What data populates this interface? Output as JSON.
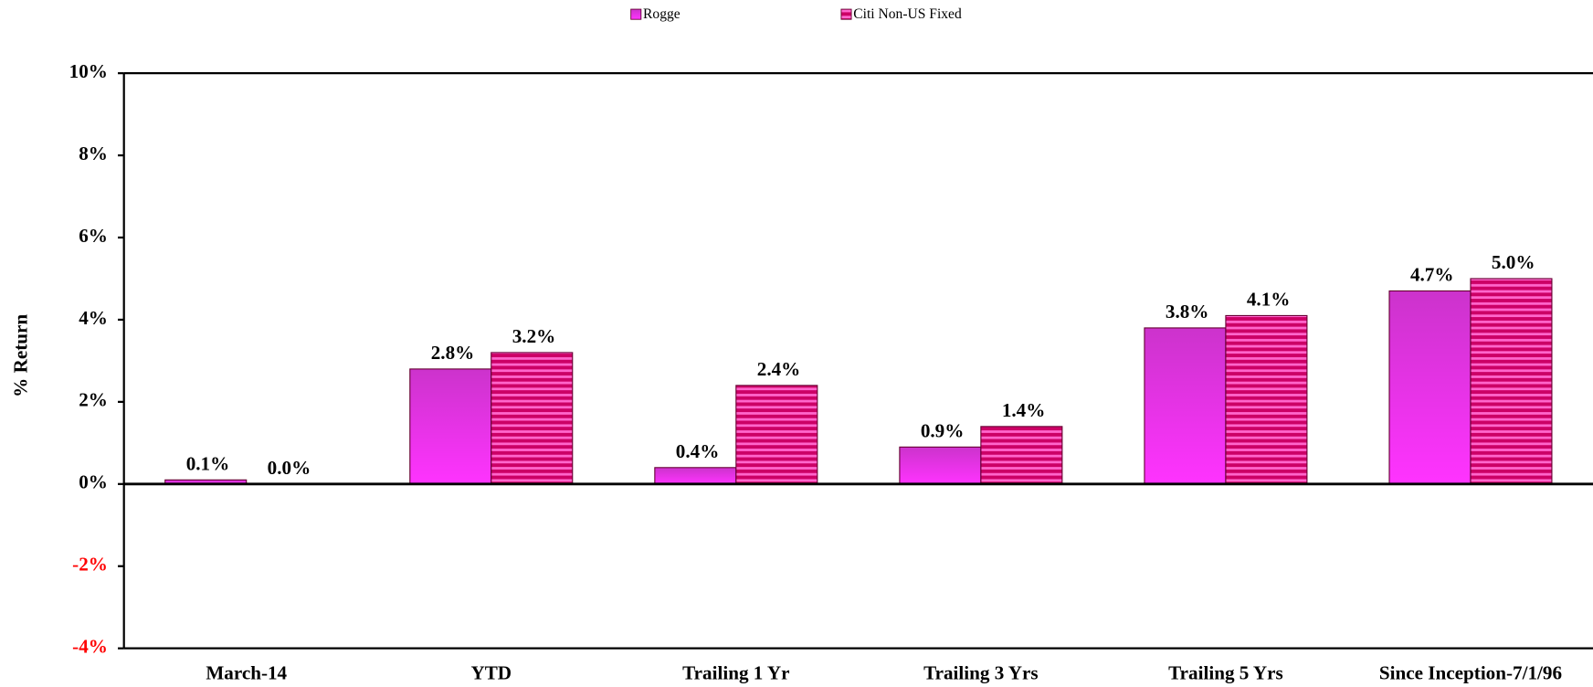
{
  "chart_data": {
    "type": "bar",
    "y_axis_label": "% Return",
    "categories": [
      "March-14",
      "YTD",
      "Trailing 1 Yr",
      "Trailing 3 Yrs",
      "Trailing 5 Yrs",
      "Since Inception-7/1/96"
    ],
    "series": [
      {
        "name": "Rogge",
        "color": "#e633e6",
        "values": [
          0.1,
          2.8,
          0.4,
          0.9,
          3.8,
          4.7
        ],
        "value_labels": [
          "0.1%",
          "2.8%",
          "0.4%",
          "0.9%",
          "3.8%",
          "4.7%"
        ]
      },
      {
        "name": "Citi Non-US Fixed",
        "color": "#cc0066",
        "values": [
          0.0,
          3.2,
          2.4,
          1.4,
          4.1,
          5.0
        ],
        "value_labels": [
          "0.0%",
          "3.2%",
          "2.4%",
          "1.4%",
          "4.1%",
          "5.0%"
        ]
      }
    ],
    "ylim": [
      -4,
      10
    ],
    "yticks": [
      {
        "value": -4,
        "label": "-4%"
      },
      {
        "value": -2,
        "label": "-2%"
      },
      {
        "value": 0,
        "label": "0%"
      },
      {
        "value": 2,
        "label": "2%"
      },
      {
        "value": 4,
        "label": "4%"
      },
      {
        "value": 6,
        "label": "6%"
      },
      {
        "value": 8,
        "label": "8%"
      },
      {
        "value": 10,
        "label": "10%"
      }
    ],
    "negative_tick_color": "#ff0000",
    "grid": false,
    "legend": "top"
  }
}
